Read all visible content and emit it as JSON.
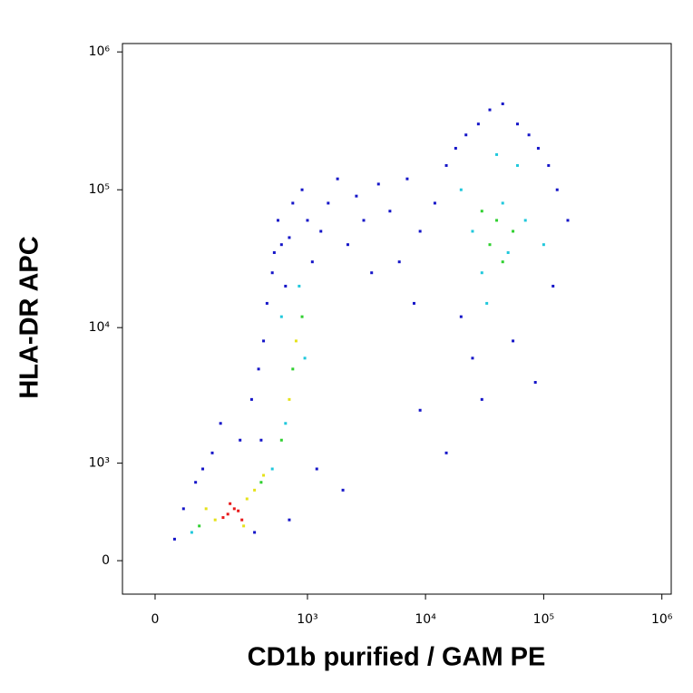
{
  "chart_data": {
    "type": "scatter",
    "xlabel": "CD1b purified / GAM PE",
    "ylabel": "HLA-DR APC",
    "xscale": "biexponential",
    "yscale": "biexponential",
    "xlim": [
      -70,
      1200000
    ],
    "ylim": [
      -240,
      1150000
    ],
    "xticks": [
      0,
      {
        "value": 1000,
        "label": "10³"
      },
      {
        "value": 10000,
        "label": "10⁴"
      },
      {
        "value": 100000,
        "label": "10⁵"
      },
      {
        "value": 1000000,
        "label": "10⁶"
      }
    ],
    "yticks": [
      0,
      {
        "value": 1000,
        "label": "10³"
      },
      {
        "value": 10000,
        "label": "10⁴"
      },
      {
        "value": 100000,
        "label": "10⁵"
      },
      {
        "value": 1000000,
        "label": "10⁶"
      }
    ],
    "series": [
      {
        "color": "#1515c8",
        "x": [
          40,
          60,
          90,
          110,
          140,
          170,
          260,
          330,
          380,
          420,
          450,
          500,
          520,
          560,
          600,
          650,
          700,
          750,
          900,
          1000,
          1100,
          1300,
          1500,
          1800,
          2200,
          2600,
          3000,
          3500,
          4000,
          5000,
          6000,
          7000,
          8000,
          9000,
          12000,
          15000,
          18000,
          22000,
          28000,
          35000,
          45000,
          60000,
          75000,
          90000,
          110000,
          130000,
          160000,
          20000,
          25000,
          30000,
          55000,
          85000,
          120000,
          400,
          350,
          700,
          1200,
          2000,
          9000,
          15000
        ],
        "y": [
          150,
          400,
          700,
          900,
          1200,
          2000,
          1500,
          3000,
          5000,
          8000,
          15000,
          25000,
          35000,
          60000,
          40000,
          20000,
          45000,
          80000,
          100000,
          60000,
          30000,
          50000,
          80000,
          120000,
          40000,
          90000,
          60000,
          25000,
          110000,
          70000,
          30000,
          120000,
          15000,
          50000,
          80000,
          150000,
          200000,
          250000,
          300000,
          380000,
          420000,
          300000,
          250000,
          200000,
          150000,
          100000,
          60000,
          12000,
          6000,
          3000,
          8000,
          4000,
          20000,
          1500,
          200,
          300,
          900,
          600,
          2500,
          1200
        ]
      },
      {
        "color": "#20c8dc",
        "x": [
          80,
          500,
          650,
          850,
          600,
          950,
          30000,
          45000,
          50000,
          25000,
          20000,
          70000,
          60000,
          40000,
          100000,
          33000
        ],
        "y": [
          200,
          900,
          2000,
          20000,
          12000,
          6000,
          25000,
          80000,
          35000,
          50000,
          100000,
          60000,
          150000,
          180000,
          40000,
          15000
        ]
      },
      {
        "color": "#30d030",
        "x": [
          100,
          400,
          600,
          750,
          900,
          35000,
          40000,
          30000,
          55000,
          45000
        ],
        "y": [
          250,
          700,
          1500,
          5000,
          12000,
          40000,
          60000,
          70000,
          50000,
          30000
        ]
      },
      {
        "color": "#e5e21a",
        "x": [
          150,
          300,
          280,
          120,
          350,
          700,
          800,
          420
        ],
        "y": [
          300,
          500,
          250,
          400,
          600,
          3000,
          8000,
          800
        ]
      },
      {
        "color": "#e8191a",
        "x": [
          200,
          230,
          180,
          250,
          210,
          270
        ],
        "y": [
          350,
          400,
          320,
          380,
          450,
          300
        ]
      }
    ]
  }
}
